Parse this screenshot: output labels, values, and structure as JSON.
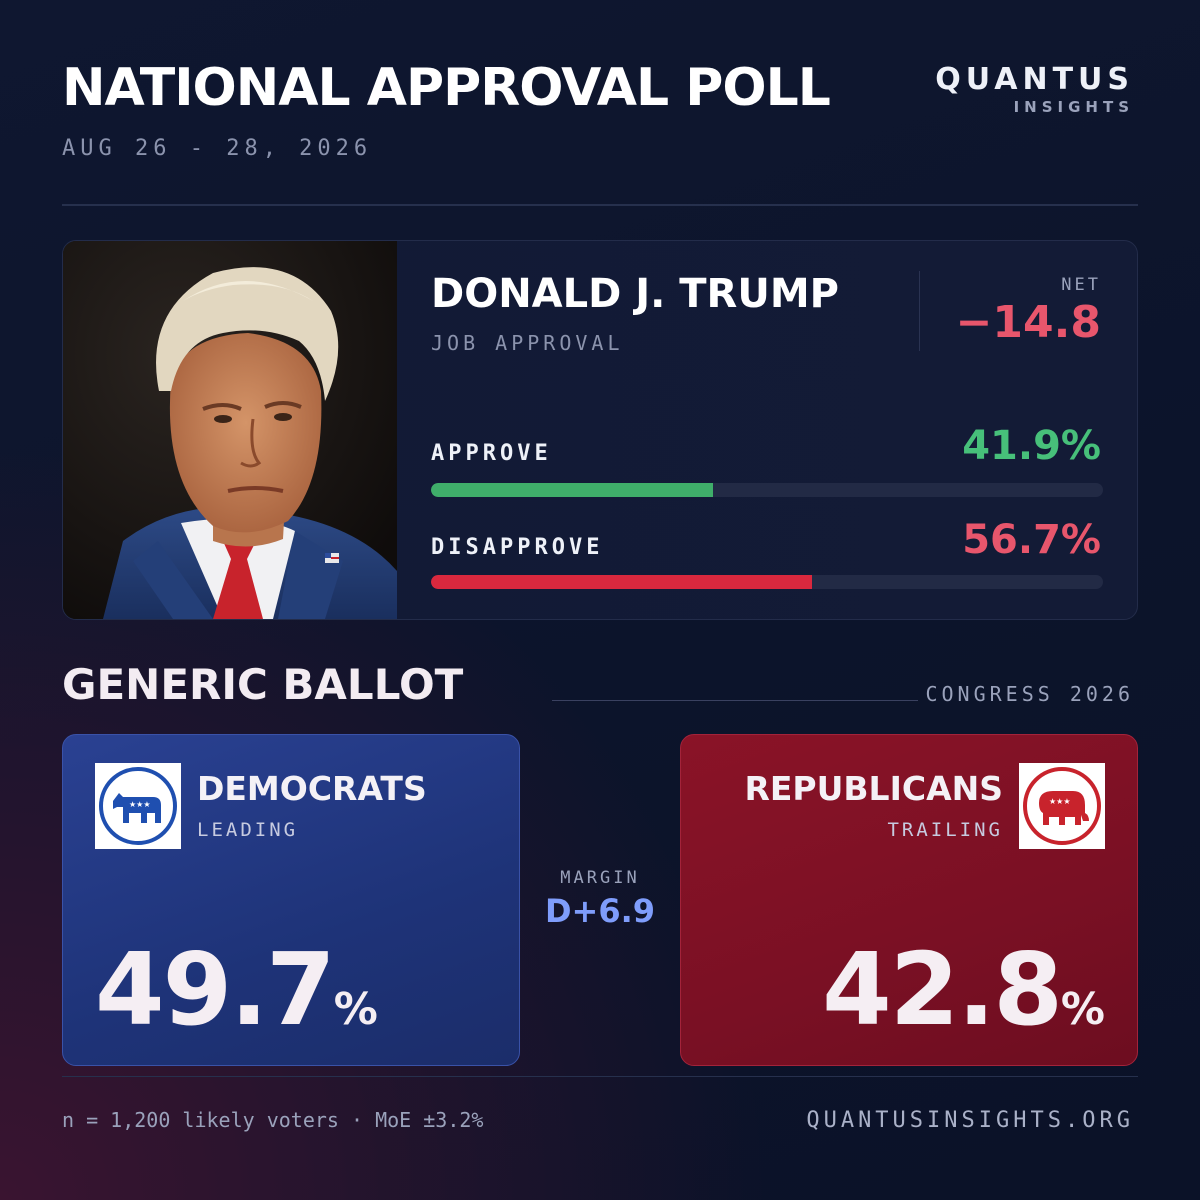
{
  "header": {
    "title": "NATIONAL APPROVAL POLL",
    "date": "AUG 26 - 28, 2026",
    "brand": "QUANTUS",
    "brand_sub": "INSIGHTS"
  },
  "approval": {
    "name": "DONALD J. TRUMP",
    "subtitle": "JOB APPROVAL",
    "net_label": "NET",
    "net_value": "−14.8",
    "approve_label": "APPROVE",
    "approve_value": "41.9%",
    "disapprove_label": "DISAPPROVE",
    "disapprove_value": "56.7%"
  },
  "ballot": {
    "title": "GENERIC BALLOT",
    "subtitle": "CONGRESS 2026",
    "margin_label": "MARGIN",
    "margin_value": "D+6.9",
    "dem": {
      "name": "DEMOCRATS",
      "status": "LEADING",
      "value": "49.7",
      "unit": "%"
    },
    "rep": {
      "name": "REPUBLICANS",
      "status": "TRAILING",
      "value": "42.8",
      "unit": "%"
    }
  },
  "footer": {
    "sample": "n = 1,200 likely voters · MoE ±3.2%",
    "site": "QUANTUSINSIGHTS.ORG"
  },
  "colors": {
    "approve": "#3fae6a",
    "disapprove": "#d9283e",
    "net_negative": "#e8566c",
    "democrat": "#2a4192",
    "republican": "#8a1327"
  },
  "chart_data": [
    {
      "type": "bar",
      "title": "DONALD J. TRUMP",
      "subtitle": "JOB APPROVAL",
      "categories": [
        "APPROVE",
        "DISAPPROVE"
      ],
      "values": [
        41.9,
        56.7
      ],
      "net": -14.8,
      "ylim": [
        0,
        100
      ]
    },
    {
      "type": "bar",
      "title": "GENERIC BALLOT",
      "subtitle": "CONGRESS 2026",
      "categories": [
        "DEMOCRATS",
        "REPUBLICANS"
      ],
      "values": [
        49.7,
        42.8
      ],
      "margin": "D+6.9"
    }
  ]
}
